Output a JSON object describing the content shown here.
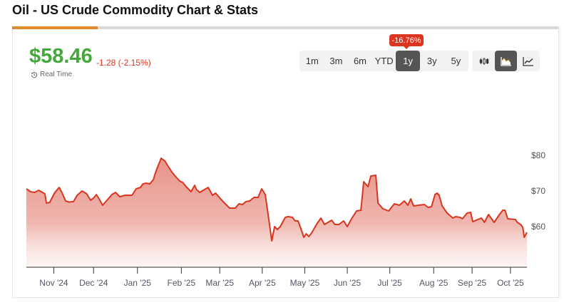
{
  "title": "Oil - US Crude Commodity Chart & Stats",
  "price": "$58.46",
  "change": "-1.28 (-2.15%)",
  "realtime_label": "Real Time",
  "range_change_badge": "-16.76%",
  "ranges": [
    "1m",
    "3m",
    "6m",
    "YTD",
    "1y",
    "3y",
    "5y"
  ],
  "active_range": "1y",
  "chart_types": [
    {
      "icon": "candlestick-icon",
      "active": false
    },
    {
      "icon": "area-chart-icon",
      "active": true
    },
    {
      "icon": "line-chart-icon",
      "active": false
    }
  ],
  "colors": {
    "up": "#44a83a",
    "down": "#d9351f",
    "accent": "#e08a2c",
    "line": "#d9351f",
    "fill": "#e8857a"
  },
  "chart_data": {
    "type": "area",
    "title": "",
    "xlabel": "",
    "ylabel": "",
    "ylim": [
      48.6,
      84
    ],
    "xlim": [
      0,
      365
    ],
    "y_ticks": [
      {
        "value": 60,
        "label": "$60"
      },
      {
        "value": 70,
        "label": "$70"
      },
      {
        "value": 80,
        "label": "$80"
      }
    ],
    "x_ticks": [
      {
        "day": 20,
        "label": "Nov '24"
      },
      {
        "day": 49,
        "label": "Dec '24"
      },
      {
        "day": 81,
        "label": "Jan '25"
      },
      {
        "day": 113,
        "label": "Feb '25"
      },
      {
        "day": 141,
        "label": "Mar '25"
      },
      {
        "day": 172,
        "label": "Apr '25"
      },
      {
        "day": 203,
        "label": "May '25"
      },
      {
        "day": 234,
        "label": "Jun '25"
      },
      {
        "day": 265,
        "label": "Jul '25"
      },
      {
        "day": 297,
        "label": "Aug '25"
      },
      {
        "day": 325,
        "label": "Sep '25"
      },
      {
        "day": 353,
        "label": "Oct '25"
      }
    ],
    "series": [
      {
        "name": "Oil - US Crude",
        "points": [
          [
            0,
            70.6
          ],
          [
            3,
            69.8
          ],
          [
            6,
            69.6
          ],
          [
            9,
            70.2
          ],
          [
            13.5,
            69.2
          ],
          [
            14.6,
            66.6
          ],
          [
            17,
            66.8
          ],
          [
            20.8,
            69.6
          ],
          [
            23.9,
            71
          ],
          [
            26,
            69.5
          ],
          [
            28.6,
            67.2
          ],
          [
            31,
            66.9
          ],
          [
            34.3,
            67
          ],
          [
            37,
            68.8
          ],
          [
            40.6,
            70
          ],
          [
            44,
            69.2
          ],
          [
            46.8,
            67.4
          ],
          [
            49,
            68
          ],
          [
            51,
            69
          ],
          [
            53,
            67.8
          ],
          [
            55.6,
            66
          ],
          [
            59,
            67.5
          ],
          [
            62.4,
            69
          ],
          [
            65,
            69.6
          ],
          [
            68.1,
            68.4
          ],
          [
            72,
            68.8
          ],
          [
            77,
            68.8
          ],
          [
            80,
            70.6
          ],
          [
            83.2,
            71
          ],
          [
            85,
            72
          ],
          [
            87.4,
            72.2
          ],
          [
            90,
            72
          ],
          [
            92.6,
            73.2
          ],
          [
            94,
            75
          ],
          [
            96.2,
            77.2
          ],
          [
            98.3,
            79.2
          ],
          [
            101,
            78.4
          ],
          [
            105.6,
            75.6
          ],
          [
            108,
            74.4
          ],
          [
            111.8,
            72.8
          ],
          [
            114,
            72.4
          ],
          [
            116.5,
            71.2
          ],
          [
            120.1,
            69.8
          ],
          [
            122.7,
            71.6
          ],
          [
            124,
            70.4
          ],
          [
            126.4,
            69.6
          ],
          [
            129,
            70.2
          ],
          [
            132.6,
            71
          ],
          [
            135.7,
            68.8
          ],
          [
            138,
            69.4
          ],
          [
            142,
            67.6
          ],
          [
            145,
            66.4
          ],
          [
            148.2,
            65.2
          ],
          [
            152.4,
            65.2
          ],
          [
            155,
            66.4
          ],
          [
            157.6,
            66.2
          ],
          [
            160,
            67
          ],
          [
            162.8,
            67.2
          ],
          [
            166,
            68.2
          ],
          [
            169,
            68.2
          ],
          [
            171.6,
            70.6
          ],
          [
            174.2,
            69
          ],
          [
            177.3,
            60.6
          ],
          [
            178.9,
            56
          ],
          [
            181,
            60
          ],
          [
            183,
            59.2
          ],
          [
            185.1,
            60
          ],
          [
            188.8,
            62.6
          ],
          [
            191,
            62.8
          ],
          [
            194,
            62.6
          ],
          [
            196,
            61.6
          ],
          [
            198.1,
            61.6
          ],
          [
            200,
            59.6
          ],
          [
            202.3,
            57
          ],
          [
            204,
            58
          ],
          [
            205.9,
            57.2
          ],
          [
            208,
            58.2
          ],
          [
            212.2,
            61
          ],
          [
            214.8,
            62.4
          ],
          [
            217.4,
            60.6
          ],
          [
            220,
            61.2
          ],
          [
            222.6,
            61.8
          ],
          [
            225,
            60.6
          ],
          [
            227.8,
            60.6
          ],
          [
            231.4,
            61.6
          ],
          [
            234,
            60
          ],
          [
            237.1,
            62.2
          ],
          [
            240.8,
            64.4
          ],
          [
            243.9,
            64.6
          ],
          [
            246,
            72.6
          ],
          [
            249.1,
            71.2
          ],
          [
            251.2,
            74.2
          ],
          [
            254.8,
            74.4
          ],
          [
            256.4,
            66.6
          ],
          [
            260,
            65
          ],
          [
            264.2,
            64.4
          ],
          [
            268.3,
            66.4
          ],
          [
            272,
            66
          ],
          [
            275.6,
            67.2
          ],
          [
            278.2,
            66
          ],
          [
            280.3,
            67.8
          ],
          [
            282.4,
            65.8
          ],
          [
            286,
            66
          ],
          [
            290.2,
            66.2
          ],
          [
            293,
            65.4
          ],
          [
            295.4,
            65.6
          ],
          [
            298,
            69
          ],
          [
            299.5,
            69.4
          ],
          [
            301,
            68.8
          ],
          [
            303.2,
            65.8
          ],
          [
            306.8,
            63.8
          ],
          [
            311,
            62.4
          ],
          [
            313,
            62.8
          ],
          [
            316.2,
            62.6
          ],
          [
            318,
            62.2
          ],
          [
            321.4,
            63.8
          ],
          [
            324,
            64
          ],
          [
            325.5,
            61.4
          ],
          [
            331.8,
            62.4
          ],
          [
            334,
            61.2
          ],
          [
            337,
            63.4
          ],
          [
            341.1,
            61.2
          ],
          [
            345,
            63.4
          ],
          [
            347.4,
            64.6
          ],
          [
            349,
            64.6
          ],
          [
            351,
            62.2
          ],
          [
            356.7,
            62
          ],
          [
            358,
            61.2
          ],
          [
            360.4,
            60.6
          ],
          [
            362,
            59.8
          ],
          [
            363,
            57
          ],
          [
            365,
            58.4
          ]
        ]
      }
    ]
  }
}
